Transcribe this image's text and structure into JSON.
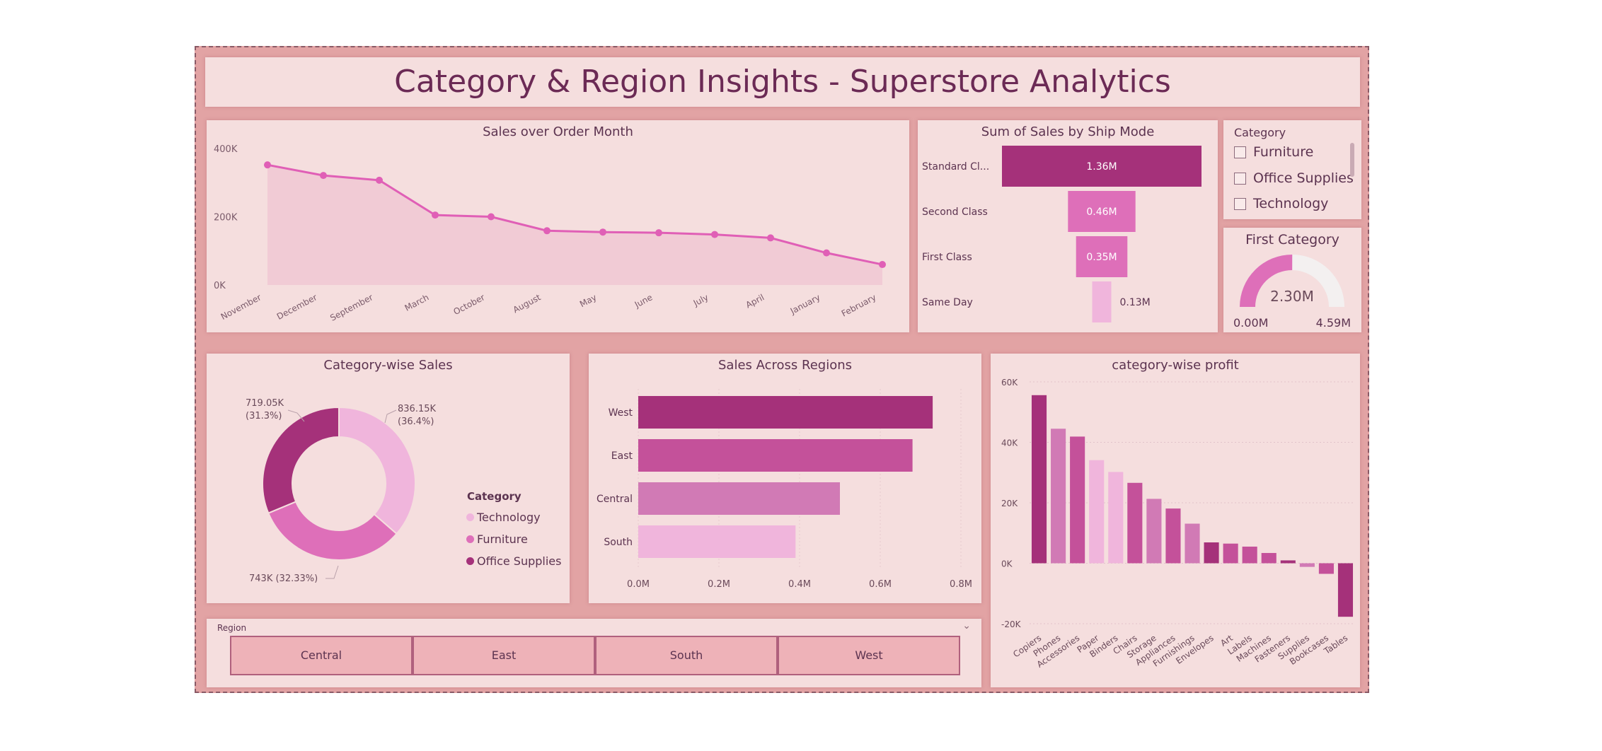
{
  "dashboard": {
    "title": "Category & Region Insights - Superstore Analytics"
  },
  "colors": {
    "background": "#e2a3a4",
    "panel": "#f5dede",
    "dark_magenta": "#a5317a",
    "medium_magenta": "#c4519a",
    "pink": "#de6fb9",
    "light_pink": "#f0b5dc",
    "line": "#e05fb6"
  },
  "category_slicer": {
    "header": "Category",
    "items": [
      "Furniture",
      "Office Supplies",
      "Technology"
    ]
  },
  "gauge": {
    "title": "First Category",
    "value_label": "2.30M",
    "min_label": "0.00M",
    "max_label": "4.59M",
    "value": 2.3,
    "min": 0,
    "max": 4.59
  },
  "region_slicer": {
    "header": "Region",
    "buttons": [
      "Central",
      "East",
      "South",
      "West"
    ]
  },
  "chart_data": [
    {
      "id": "sales_over_month",
      "type": "area",
      "title": "Sales over Order Month",
      "x": [
        "November",
        "December",
        "September",
        "March",
        "October",
        "August",
        "May",
        "June",
        "July",
        "April",
        "January",
        "February"
      ],
      "values": [
        352000,
        321000,
        307000,
        205000,
        200000,
        159000,
        155000,
        153000,
        148000,
        138000,
        94000,
        60000
      ],
      "y_ticks": [
        "400K",
        "200K",
        "0K"
      ],
      "ylim": [
        0,
        400000
      ],
      "grid": false
    },
    {
      "id": "sales_by_ship_mode",
      "type": "bar",
      "title": "Sum of Sales by Ship Mode",
      "orientation": "horizontal-funnel",
      "categories": [
        "Standard Cl...",
        "Second Class",
        "First Class",
        "Same Day"
      ],
      "values": [
        1.36,
        0.46,
        0.35,
        0.13
      ],
      "labels": [
        "1.36M",
        "0.46M",
        "0.35M",
        "0.13M"
      ]
    },
    {
      "id": "category_wise_sales",
      "type": "pie",
      "title": "Category-wise Sales",
      "categories": [
        "Technology",
        "Furniture",
        "Office Supplies"
      ],
      "values": [
        836.15,
        743,
        719.05
      ],
      "labels": [
        "836.15K",
        "743K (32.33%)",
        "719.05K"
      ],
      "percent_labels": [
        "(36.4%)",
        "",
        "(31.3%)"
      ],
      "legend_title": "Category",
      "legend": "right"
    },
    {
      "id": "sales_across_regions",
      "type": "bar",
      "title": "Sales Across Regions",
      "orientation": "horizontal",
      "categories": [
        "West",
        "East",
        "Central",
        "South"
      ],
      "values": [
        0.73,
        0.68,
        0.5,
        0.39
      ],
      "x_ticks": [
        "0.0M",
        "0.2M",
        "0.4M",
        "0.6M",
        "0.8M"
      ],
      "xlim": [
        0,
        0.8
      ]
    },
    {
      "id": "category_wise_profit",
      "type": "bar",
      "title": "category-wise profit",
      "categories": [
        "Copiers",
        "Phones",
        "Accessories",
        "Paper",
        "Binders",
        "Chairs",
        "Storage",
        "Appliances",
        "Furnishings",
        "Envelopes",
        "Art",
        "Labels",
        "Machines",
        "Fasteners",
        "Supplies",
        "Bookcases",
        "Tables"
      ],
      "values": [
        55600,
        44500,
        41900,
        34100,
        30200,
        26600,
        21300,
        18100,
        13100,
        6900,
        6500,
        5500,
        3400,
        950,
        -1200,
        -3500,
        -17700
      ],
      "y_ticks": [
        "60K",
        "40K",
        "20K",
        "0K",
        "-20K"
      ],
      "ylim": [
        -20000,
        60000
      ],
      "grid": true
    }
  ]
}
